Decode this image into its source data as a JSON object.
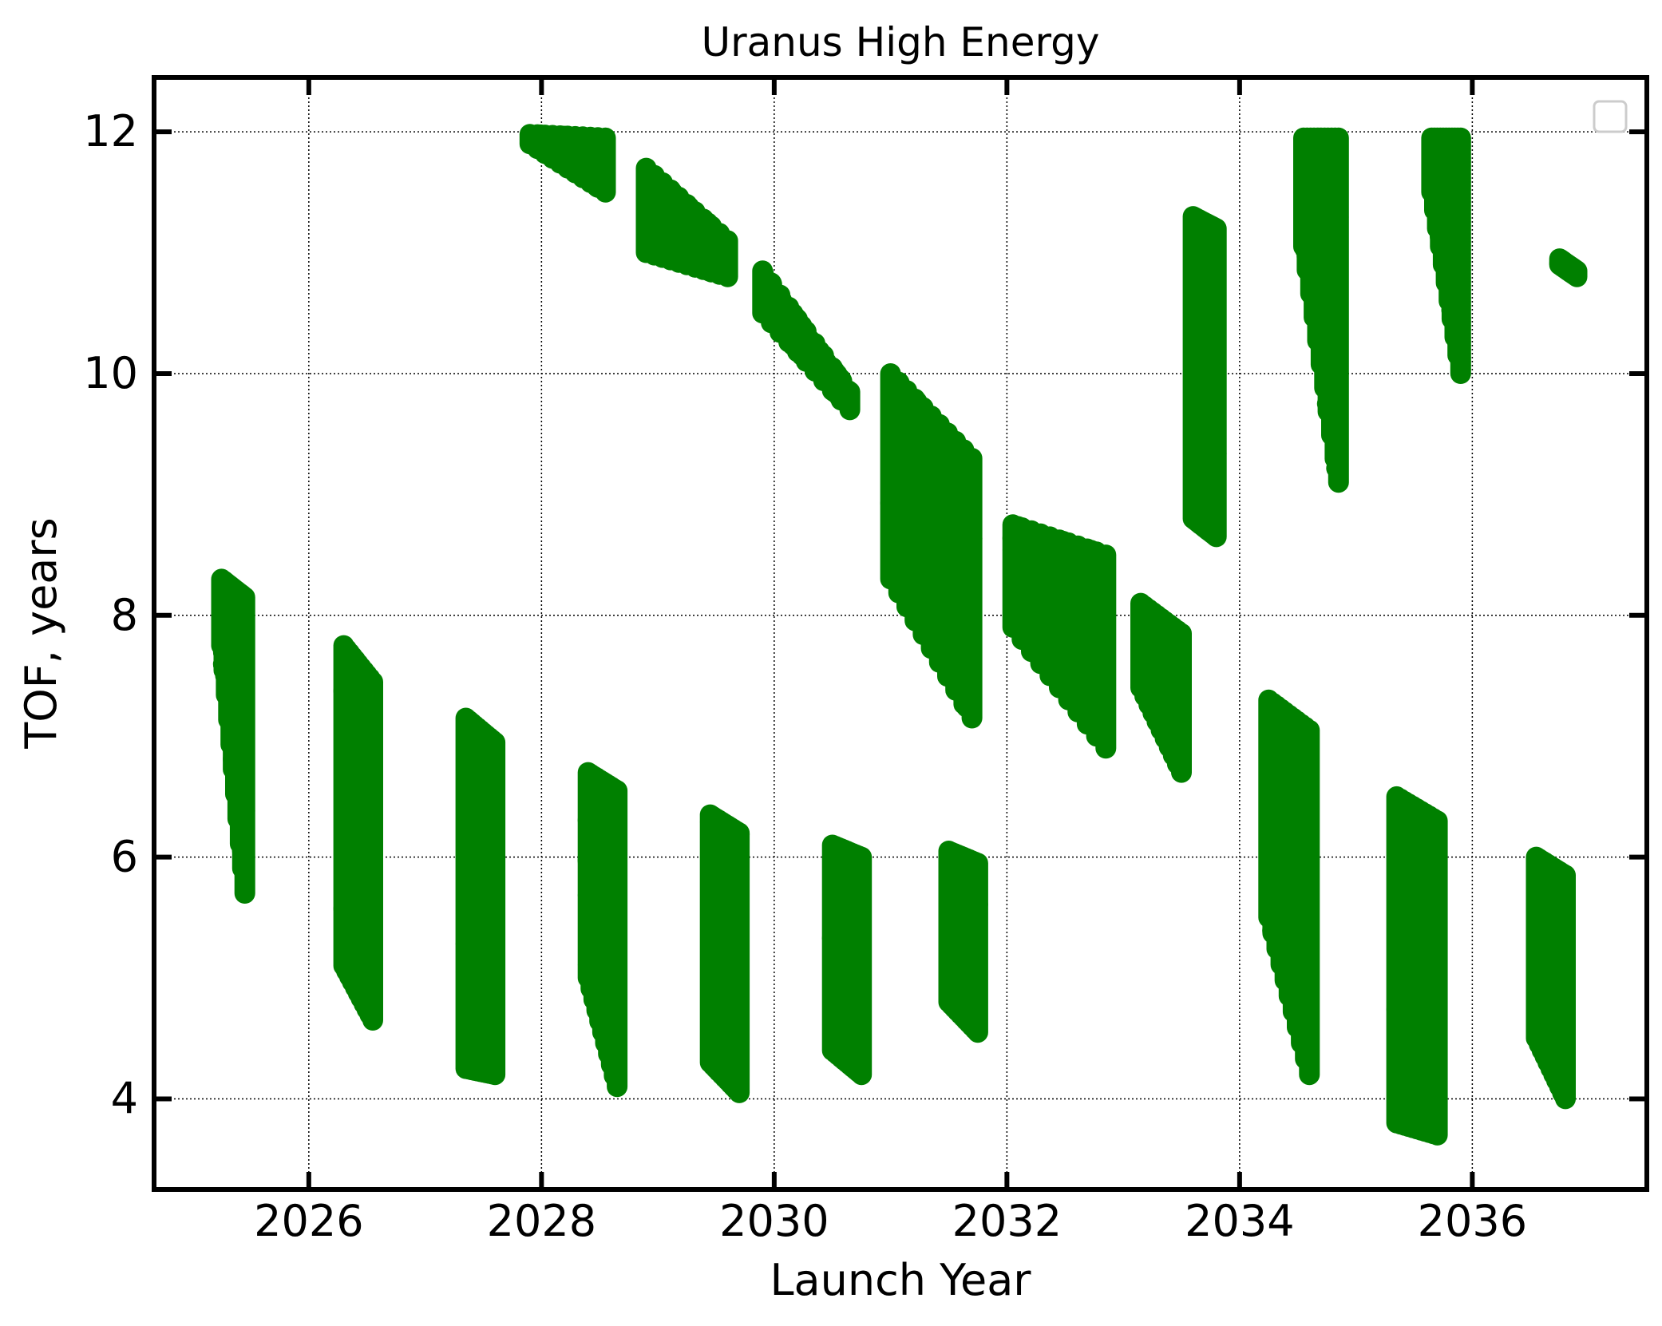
{
  "chart_data": {
    "type": "scatter",
    "title": "Uranus High Energy",
    "xlabel": "Launch Year",
    "ylabel": "TOF, years",
    "xlim": [
      2024.67,
      2037.5
    ],
    "ylim": [
      3.25,
      12.45
    ],
    "x_ticks": [
      2026,
      2028,
      2030,
      2032,
      2034,
      2036
    ],
    "y_ticks": [
      4,
      6,
      8,
      10,
      12
    ],
    "grid": true,
    "legend": "top-right (empty)",
    "marker_color": "#008000",
    "clusters": [
      {
        "x0": 2025.25,
        "x1": 2025.45,
        "ytop0": 8.3,
        "ytop1": 8.15,
        "ybot0": 7.75,
        "ybot1": 5.7
      },
      {
        "x0": 2026.3,
        "x1": 2026.55,
        "ytop0": 7.75,
        "ytop1": 7.45,
        "ybot0": 5.1,
        "ybot1": 4.65
      },
      {
        "x0": 2027.35,
        "x1": 2027.6,
        "ytop0": 7.15,
        "ytop1": 6.95,
        "ybot0": 4.25,
        "ybot1": 4.2
      },
      {
        "x0": 2028.4,
        "x1": 2028.65,
        "ytop0": 6.7,
        "ytop1": 6.55,
        "ybot0": 5.0,
        "ybot1": 4.1
      },
      {
        "x0": 2029.45,
        "x1": 2029.7,
        "ytop0": 6.35,
        "ytop1": 6.2,
        "ybot0": 4.3,
        "ybot1": 4.05
      },
      {
        "x0": 2030.5,
        "x1": 2030.75,
        "ytop0": 6.1,
        "ytop1": 6.0,
        "ybot0": 4.4,
        "ybot1": 4.2
      },
      {
        "x0": 2031.5,
        "x1": 2031.75,
        "ytop0": 6.05,
        "ytop1": 5.95,
        "ybot0": 4.8,
        "ybot1": 4.55
      },
      {
        "x0": 2034.25,
        "x1": 2034.6,
        "ytop0": 7.3,
        "ytop1": 7.05,
        "ybot0": 5.5,
        "ybot1": 4.2
      },
      {
        "x0": 2035.35,
        "x1": 2035.7,
        "ytop0": 6.5,
        "ytop1": 6.3,
        "ybot0": 3.8,
        "ybot1": 3.7
      },
      {
        "x0": 2036.55,
        "x1": 2036.8,
        "ytop0": 6.0,
        "ytop1": 5.85,
        "ybot0": 4.5,
        "ybot1": 4.0
      },
      {
        "x0": 2027.9,
        "x1": 2028.55,
        "ytop0": 11.98,
        "ytop1": 11.95,
        "ybot0": 11.9,
        "ybot1": 11.5
      },
      {
        "x0": 2028.9,
        "x1": 2029.6,
        "ytop0": 11.7,
        "ytop1": 11.1,
        "ybot0": 11.0,
        "ybot1": 10.8
      },
      {
        "x0": 2029.9,
        "x1": 2030.65,
        "ytop0": 10.85,
        "ytop1": 9.85,
        "ybot0": 10.5,
        "ybot1": 9.7
      },
      {
        "x0": 2031.0,
        "x1": 2031.7,
        "ytop0": 10.0,
        "ytop1": 9.3,
        "ybot0": 8.3,
        "ybot1": 7.15
      },
      {
        "x0": 2032.05,
        "x1": 2032.85,
        "ytop0": 8.75,
        "ytop1": 8.5,
        "ybot0": 7.9,
        "ybot1": 6.9
      },
      {
        "x0": 2033.15,
        "x1": 2033.5,
        "ytop0": 8.1,
        "ytop1": 7.85,
        "ybot0": 7.4,
        "ybot1": 6.7
      },
      {
        "x0": 2033.6,
        "x1": 2033.8,
        "ytop0": 11.3,
        "ytop1": 11.2,
        "ybot0": 8.8,
        "ybot1": 8.65
      },
      {
        "x0": 2034.55,
        "x1": 2034.85,
        "ytop0": 11.95,
        "ytop1": 11.95,
        "ybot0": 11.05,
        "ybot1": 9.1
      },
      {
        "x0": 2035.65,
        "x1": 2035.9,
        "ytop0": 11.95,
        "ytop1": 11.95,
        "ybot0": 11.5,
        "ybot1": 10.0
      },
      {
        "x0": 2036.75,
        "x1": 2036.9,
        "ytop0": 10.95,
        "ytop1": 10.85,
        "ybot0": 10.9,
        "ybot1": 10.8
      }
    ]
  }
}
